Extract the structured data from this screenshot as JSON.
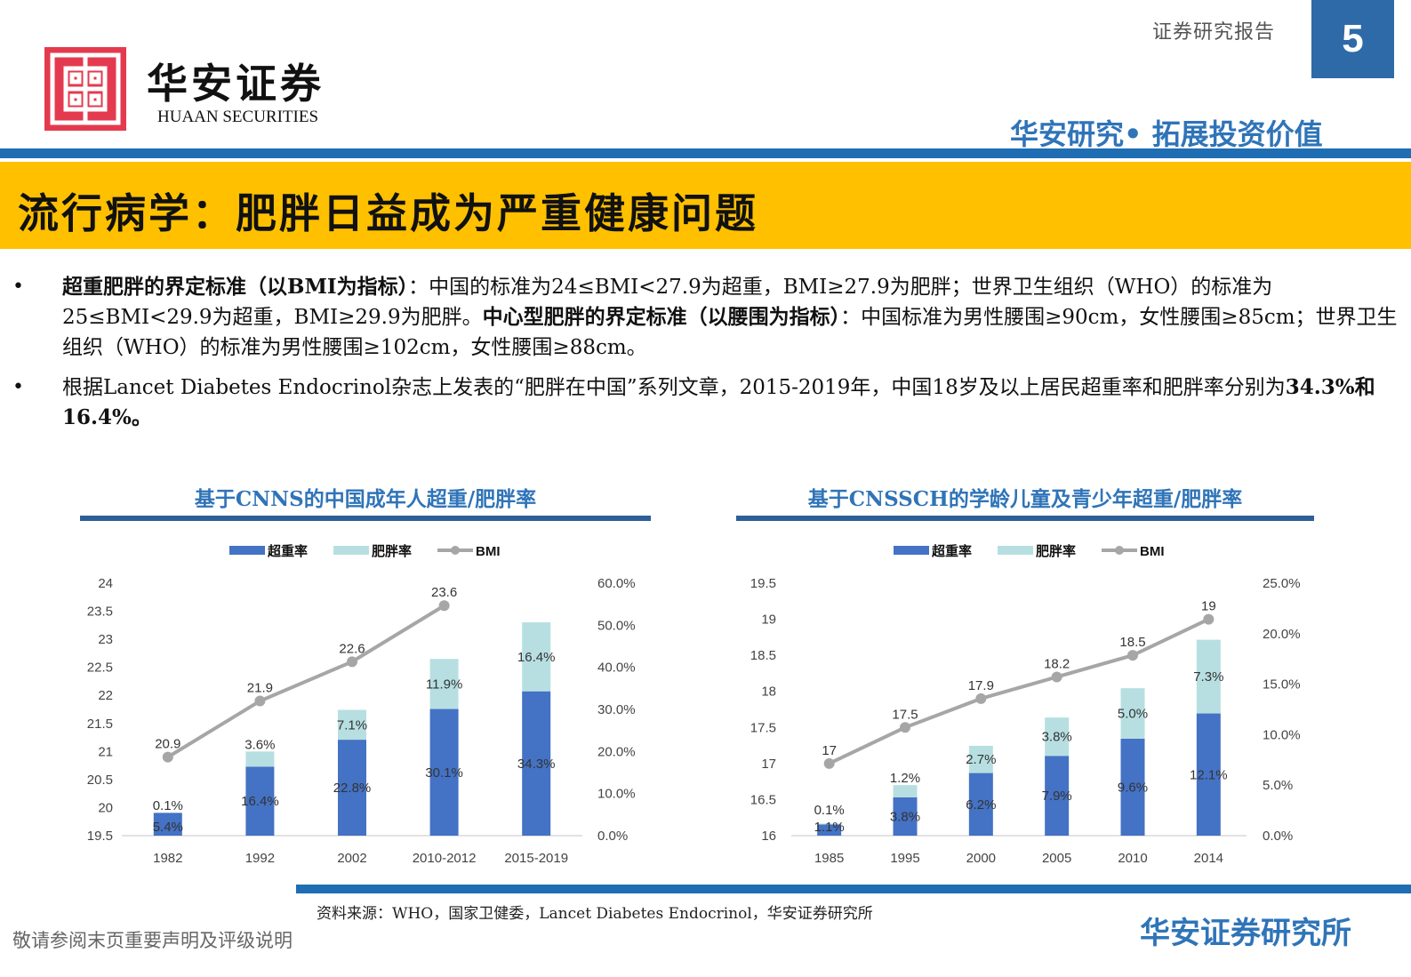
{
  "header": {
    "logo_cn": "华安证券",
    "logo_en": "HUAAN SECURITIES",
    "report_type": "证券研究报告",
    "page_number": "5",
    "slogan": "华安研究• 拓展投资价值"
  },
  "title": "流行病学：肥胖日益成为严重健康问题",
  "bullets": [
    {
      "bold1": "超重肥胖的界定标准（以BMI为指标）",
      "text1": "：中国的标准为24≤BMI<27.9为超重，BMI≥27.9为肥胖；世界卫生组织（WHO）的标准为25≤BMI<29.9为超重，BMI≥29.9为肥胖。",
      "bold2": "中心型肥胖的界定标准（以腰围为指标）",
      "text2": "：中国标准为男性腰围≥90cm，女性腰围≥85cm；世界卫生组织（WHO）的标准为男性腰围≥102cm，女性腰围≥88cm。"
    },
    {
      "text1": "根据Lancet Diabetes Endocrinol杂志上发表的“肥胖在中国”系列文章，2015-2019年，中国18岁及以上居民超重率和肥胖率分别为",
      "bold1": "34.3%和16.4%。"
    }
  ],
  "colors": {
    "overweight": "#4472c4",
    "obese": "#b7dfe2",
    "bmi": "#a6a6a6",
    "brand_blue": "#2f74b8",
    "title_bar": "#ffc000"
  },
  "chart_data": [
    {
      "type": "bar",
      "title": "基于CNNS的中国成年人超重/肥胖率",
      "legend": [
        "超重率",
        "肥胖率",
        "BMI"
      ],
      "legend_position": "top",
      "categories": [
        "1982",
        "1992",
        "2002",
        "2010-2012",
        "2015-2019"
      ],
      "series": [
        {
          "name": "超重率",
          "kind": "stacked-bar",
          "axis": "right",
          "values": [
            5.4,
            16.4,
            22.8,
            30.1,
            34.3
          ],
          "labels": [
            "5.4%",
            "16.4%",
            "22.8%",
            "30.1%",
            "34.3%"
          ]
        },
        {
          "name": "肥胖率",
          "kind": "stacked-bar",
          "axis": "right",
          "values": [
            0.1,
            3.6,
            7.1,
            11.9,
            16.4
          ],
          "labels": [
            "0.1%",
            "3.6%",
            "7.1%",
            "11.9%",
            "16.4%"
          ]
        },
        {
          "name": "BMI",
          "kind": "line",
          "axis": "left",
          "values": [
            20.9,
            21.9,
            22.6,
            23.6,
            null
          ],
          "labels": [
            "20.9",
            "21.9",
            "22.6",
            "23.6",
            ""
          ]
        }
      ],
      "y_left": {
        "range": [
          19.5,
          24
        ],
        "ticks": [
          "19.5",
          "20",
          "20.5",
          "21",
          "21.5",
          "22",
          "22.5",
          "23",
          "23.5",
          "24"
        ]
      },
      "y_right": {
        "range": [
          0,
          60
        ],
        "ticks": [
          "0.0%",
          "10.0%",
          "20.0%",
          "30.0%",
          "40.0%",
          "50.0%",
          "60.0%"
        ]
      }
    },
    {
      "type": "bar",
      "title": "基于CNSSCH的学龄儿童及青少年超重/肥胖率",
      "legend": [
        "超重率",
        "肥胖率",
        "BMI"
      ],
      "legend_position": "top",
      "categories": [
        "1985",
        "1995",
        "2000",
        "2005",
        "2010",
        "2014"
      ],
      "series": [
        {
          "name": "超重率",
          "kind": "stacked-bar",
          "axis": "right",
          "values": [
            1.1,
            3.8,
            6.2,
            7.9,
            9.6,
            12.1
          ],
          "labels": [
            "1.1%",
            "3.8%",
            "6.2%",
            "7.9%",
            "9.6%",
            "12.1%"
          ]
        },
        {
          "name": "肥胖率",
          "kind": "stacked-bar",
          "axis": "right",
          "values": [
            0.1,
            1.2,
            2.7,
            3.8,
            5.0,
            7.3
          ],
          "labels": [
            "0.1%",
            "1.2%",
            "2.7%",
            "3.8%",
            "5.0%",
            "7.3%"
          ]
        },
        {
          "name": "BMI",
          "kind": "line",
          "axis": "left",
          "values": [
            17,
            17.5,
            17.9,
            18.2,
            18.5,
            19
          ],
          "labels": [
            "17",
            "17.5",
            "17.9",
            "18.2",
            "18.5",
            "19"
          ]
        }
      ],
      "y_left": {
        "range": [
          16,
          19.5
        ],
        "ticks": [
          "16",
          "16.5",
          "17",
          "17.5",
          "18",
          "18.5",
          "19",
          "19.5"
        ]
      },
      "y_right": {
        "range": [
          0,
          25
        ],
        "ticks": [
          "0.0%",
          "5.0%",
          "10.0%",
          "15.0%",
          "20.0%",
          "25.0%"
        ]
      }
    }
  ],
  "footer": {
    "source": "资料来源：WHO，国家卫健委，Lancet Diabetes Endocrinol，华安证券研究所",
    "disclaimer": "敬请参阅末页重要声明及评级说明",
    "brand": "华安证券研究所"
  }
}
